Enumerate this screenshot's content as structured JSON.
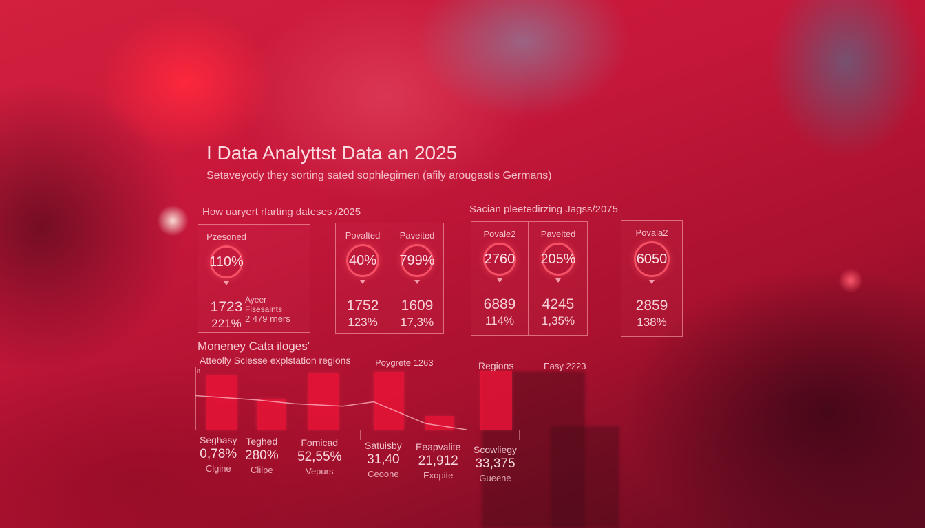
{
  "heading": {
    "title": "I Data Analyttst Data an 2025",
    "subtitle": "Setaveyody they sorting sated sophlegimen (afily arougastis Germans)"
  },
  "left_section": {
    "title": "How uaryert rfarting dateses /2025",
    "card_a": {
      "label": "Pzesoned",
      "ring": "110%",
      "v1": "1723",
      "v2": "221%",
      "note_1": "Ayeer",
      "note_2": "Fisesaints",
      "note_3": "2 479 rners"
    },
    "card_b": [
      {
        "label": "Povalted",
        "ring": "40%",
        "v1": "1752",
        "v2": "123%"
      },
      {
        "label": "Paveited",
        "ring": "799%",
        "v1": "1609",
        "v2": "17,3%"
      }
    ]
  },
  "right_section": {
    "title": "Sacian pleetedirzing Jagss/2075",
    "card_c": [
      {
        "label": "Povale2",
        "ring": "2760",
        "v1": "6889",
        "v2": "114%"
      },
      {
        "label": "Paveited",
        "ring": "205%",
        "v1": "4245",
        "v2": "1,35%"
      }
    ],
    "card_d": {
      "label": "Povala2",
      "ring": "6050",
      "v1": "2859",
      "v2": "138%"
    }
  },
  "chart": {
    "title": "Moneney Cata iloges'",
    "subtitle": "Atteolly Sciesse explstation regions",
    "header_1": "Poygrete 1263",
    "header_2": "Regions",
    "header_3": "Easy 2223",
    "axis_tick": "8"
  },
  "chart_data": {
    "type": "bar",
    "values": [
      88,
      50,
      92,
      93,
      22,
      96
    ],
    "line_values": [
      55,
      48,
      38,
      45,
      10,
      0
    ],
    "ylim": [
      0,
      100
    ]
  },
  "metrics": [
    {
      "name": "Seghasy",
      "value": "0,78%",
      "sub": "Clgine"
    },
    {
      "name": "Teghed",
      "value": "280%",
      "sub": "Clilpe"
    },
    {
      "name": "Fomicad",
      "value": "52,55%",
      "sub": "Vepurs"
    },
    {
      "name": "Satuisby",
      "value": "31,40",
      "sub": "Ceoone"
    },
    {
      "name": "Eeapvalite",
      "value": "21,912",
      "sub": "Exopite"
    },
    {
      "name": "Scowliegy",
      "value": "33,375",
      "sub": "Gueene"
    }
  ],
  "colors": {
    "bar": "#e6143a",
    "ring": "#ff5a6e",
    "background": "#c5173a"
  }
}
